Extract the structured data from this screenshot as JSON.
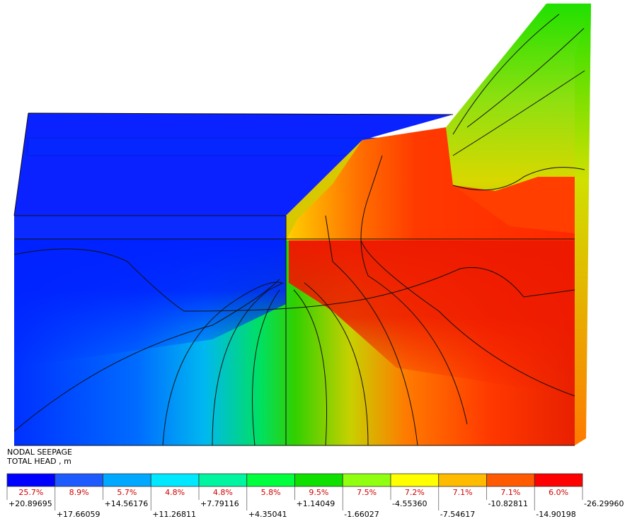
{
  "legend": {
    "title": "NODAL SEEPAGE",
    "subtitle": "TOTAL HEAD , m",
    "bins": [
      {
        "percent": "25.7%",
        "color": "#0000ff"
      },
      {
        "percent": "8.9%",
        "color": "#1d5bff"
      },
      {
        "percent": "5.7%",
        "color": "#00a8ff"
      },
      {
        "percent": "4.8%",
        "color": "#00e8ff"
      },
      {
        "percent": "4.8%",
        "color": "#00f5a0"
      },
      {
        "percent": "5.8%",
        "color": "#00ff3c"
      },
      {
        "percent": "9.5%",
        "color": "#10e000"
      },
      {
        "percent": "7.5%",
        "color": "#90ff10"
      },
      {
        "percent": "7.2%",
        "color": "#ffff00"
      },
      {
        "percent": "7.1%",
        "color": "#ffbb00"
      },
      {
        "percent": "7.1%",
        "color": "#ff5a00"
      },
      {
        "percent": "6.0%",
        "color": "#ff0000"
      }
    ],
    "boundaries": [
      "+20.89695",
      "+17.66059",
      "+14.56176",
      "+11.26811",
      "+7.79116",
      "+4.35041",
      "+1.14049",
      "-1.66027",
      "-4.55360",
      "-7.54617",
      "-10.82811",
      "-14.90198",
      "-26.29960"
    ]
  }
}
